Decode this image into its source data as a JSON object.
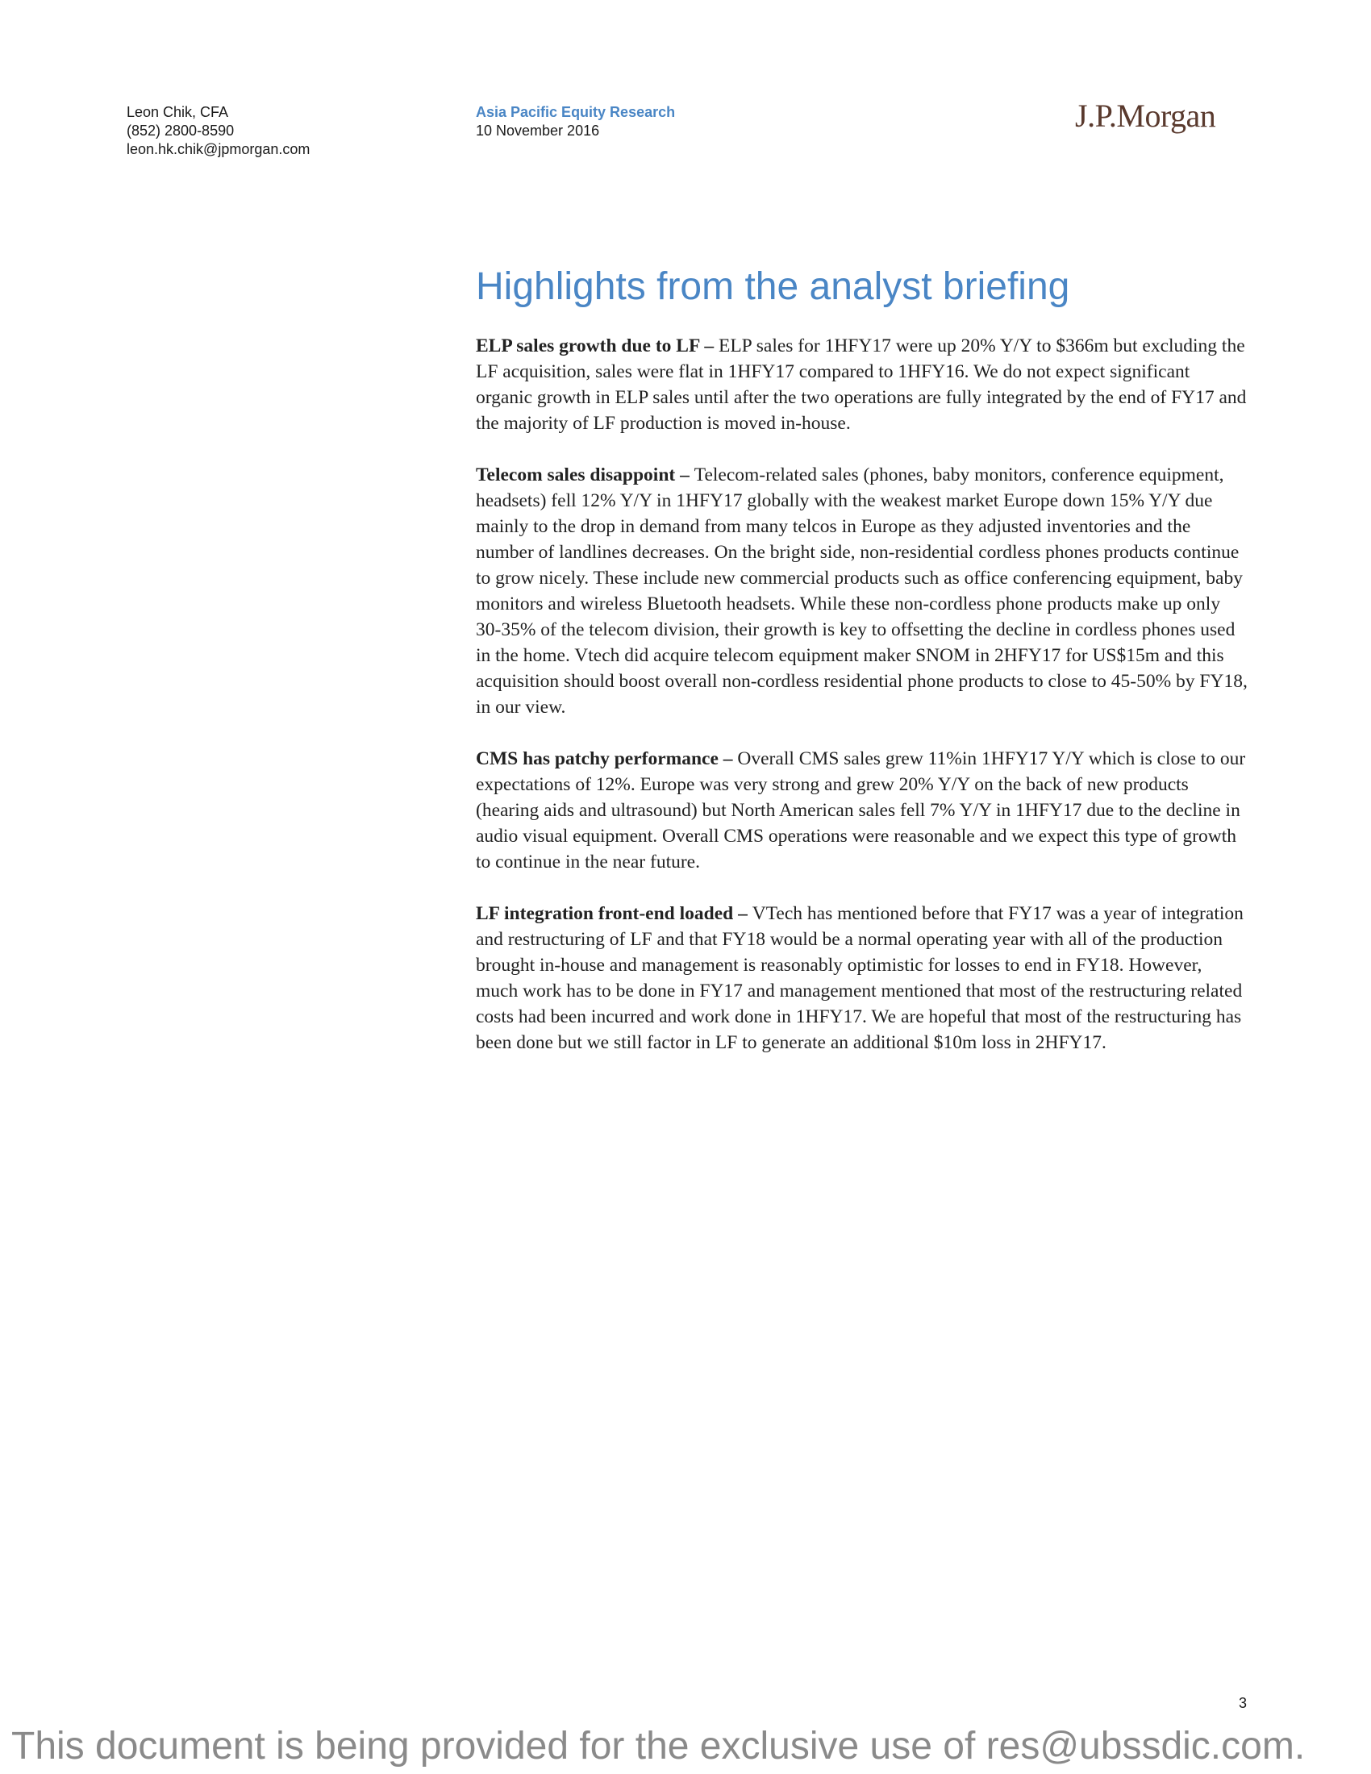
{
  "header": {
    "analyst": {
      "name": "Leon Chik, CFA",
      "phone": "(852) 2800-8590",
      "email": "leon.hk.chik@jpmorgan.com"
    },
    "report_series": "Asia Pacific Equity Research",
    "date": "10 November 2016",
    "logo_text": "J.P.Morgan"
  },
  "main": {
    "title": "Highlights from the analyst briefing",
    "paragraphs": [
      {
        "lead": "ELP sales growth due to LF – ",
        "text": "ELP sales for 1HFY17 were up 20% Y/Y to $366m but excluding the LF acquisition, sales were flat in 1HFY17 compared to 1HFY16. We do not expect significant organic growth in ELP sales until after the two operations are fully integrated by the end of FY17 and the majority of LF production is moved in-house."
      },
      {
        "lead": "Telecom sales disappoint – ",
        "text": "Telecom-related sales (phones, baby monitors, conference equipment, headsets) fell 12% Y/Y in 1HFY17 globally with the weakest market Europe down 15% Y/Y due mainly to the drop in demand from many telcos in Europe as they adjusted inventories and the number of landlines decreases.  On the bright side, non-residential cordless phones products continue to grow nicely. These include new commercial products such as office conferencing equipment, baby monitors and wireless Bluetooth headsets.  While these non-cordless phone products make up only 30-35% of the telecom division, their growth is key to offsetting the decline in cordless phones used in the home. Vtech did acquire telecom equipment maker SNOM in 2HFY17 for US$15m and this acquisition should boost overall non-cordless residential phone products to close to 45-50% by FY18, in our view."
      },
      {
        "lead": "CMS has patchy performance – ",
        "text": "Overall CMS sales grew 11%in 1HFY17 Y/Y which is close to our expectations of 12%.  Europe was very strong and grew 20% Y/Y on the back of new products (hearing aids and ultrasound) but North American sales fell 7% Y/Y in 1HFY17 due to the decline in audio visual equipment. Overall CMS operations were reasonable and we expect this type of growth to continue in the near future."
      },
      {
        "lead": "LF integration front-end loaded – ",
        "text": "VTech has mentioned before that FY17 was a year of integration and restructuring of LF and that FY18 would be a normal operating year with all of the production brought in-house and management is reasonably optimistic for losses to end in FY18.  However, much work has to be done in FY17 and management mentioned that most of the restructuring related costs had been incurred and work done in 1HFY17.  We are hopeful that most of the restructuring has been done but we still factor in LF to generate an additional $10m loss in 2HFY17."
      }
    ]
  },
  "footer": {
    "page_number": "3",
    "notice": "This document is being provided for the exclusive use of res@ubssdic.com."
  }
}
